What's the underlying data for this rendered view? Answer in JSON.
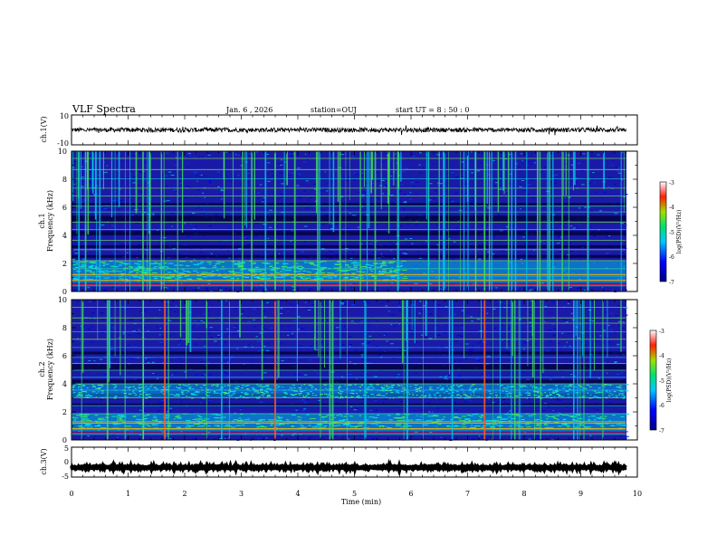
{
  "header": {
    "title": "VLF Spectra",
    "date": "Jan. 6 , 2026",
    "station": "station=OUJ",
    "start": "start UT =  8 : 50 : 0"
  },
  "colors": {
    "background": "#ffffff",
    "axis": "#000000",
    "spectrogram_floor": "#1a1aa8",
    "spectrogram_mid": "#00b8e6",
    "spectrogram_high": "#40e060",
    "spectrogram_peak": "#ff2020"
  },
  "chart_data": [
    {
      "id": "ch1-waveform",
      "type": "line",
      "ylabel": "ch.1(V)",
      "xlim": [
        0,
        10
      ],
      "ylim": [
        -10,
        10
      ],
      "y_ticks": [
        "10",
        "-10"
      ],
      "series": [
        {
          "name": "ch.1 waveform",
          "x_range": [
            0,
            9.8
          ],
          "mean": 0,
          "amplitude": 1.5
        }
      ]
    },
    {
      "id": "ch1-spectrogram",
      "type": "heatmap",
      "ylabel": "ch.1\nFrequency (kHz)",
      "xlim": [
        0,
        10
      ],
      "ylim": [
        0,
        10
      ],
      "y_ticks": [
        "0",
        "2",
        "4",
        "6",
        "8",
        "10"
      ],
      "data_x_end": 9.8,
      "colorbar": {
        "label": "log(PSD)(V²/Hz)",
        "range": [
          -7,
          -3
        ],
        "ticks": [
          "-3",
          "-4",
          "-5",
          "-6",
          "-7"
        ]
      }
    },
    {
      "id": "ch2-spectrogram",
      "type": "heatmap",
      "ylabel": "ch.2\nFrequency (kHz)",
      "xlim": [
        0,
        10
      ],
      "ylim": [
        0,
        10
      ],
      "y_ticks": [
        "0",
        "2",
        "4",
        "6",
        "8",
        "10"
      ],
      "data_x_end": 9.8,
      "colorbar": {
        "label": "log(PSD)(V²/Hz)",
        "range": [
          -7,
          -3
        ],
        "ticks": [
          "-3",
          "-4",
          "-5",
          "-6",
          "-7"
        ]
      }
    },
    {
      "id": "ch3-waveform",
      "type": "line",
      "ylabel": "ch.3(V)",
      "xlim": [
        0,
        10
      ],
      "ylim": [
        -5,
        5
      ],
      "y_ticks": [
        "5",
        "0",
        "-5"
      ],
      "series": [
        {
          "name": "ch.3 waveform",
          "x_range": [
            0,
            9.8
          ],
          "mean": -1.8,
          "amplitude": 0.3
        }
      ]
    }
  ],
  "x_axis": {
    "label": "Time (min)",
    "ticks": [
      "0",
      "1",
      "2",
      "3",
      "4",
      "5",
      "6",
      "7",
      "8",
      "9",
      "10"
    ]
  }
}
